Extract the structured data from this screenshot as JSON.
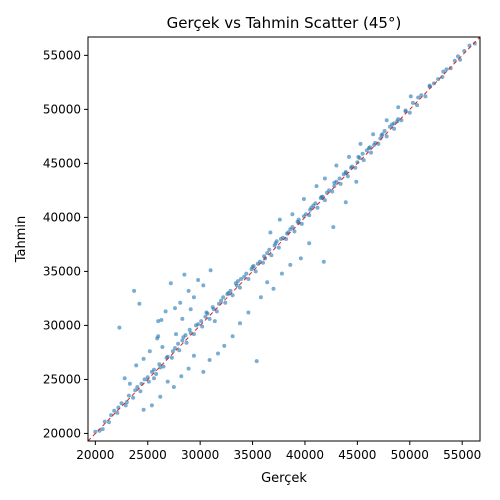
{
  "chart_data": {
    "type": "scatter",
    "title": "Gerçek vs Tahmin Scatter (45°)",
    "xlabel": "Gerçek",
    "ylabel": "Tahmin",
    "xlim": [
      19300,
      56700
    ],
    "ylim": [
      19300,
      56700
    ],
    "xticks": [
      20000,
      25000,
      30000,
      35000,
      40000,
      45000,
      50000,
      55000
    ],
    "yticks": [
      20000,
      25000,
      30000,
      35000,
      40000,
      45000,
      50000,
      55000
    ],
    "grid": false,
    "reference_line": {
      "from": [
        19300,
        19300
      ],
      "to": [
        56700,
        56700
      ],
      "color": "#d62728",
      "style": "dashed"
    },
    "point_color": "#1f77b4",
    "points": [
      [
        20000,
        20150
      ],
      [
        20400,
        20250
      ],
      [
        20900,
        21100
      ],
      [
        21300,
        21050
      ],
      [
        21800,
        22100
      ],
      [
        22100,
        21900
      ],
      [
        22500,
        22800
      ],
      [
        22900,
        22600
      ],
      [
        23200,
        23500
      ],
      [
        23600,
        23300
      ],
      [
        24000,
        24300
      ],
      [
        24300,
        23900
      ],
      [
        24700,
        25000
      ],
      [
        25100,
        24800
      ],
      [
        25400,
        25700
      ],
      [
        25800,
        25500
      ],
      [
        26100,
        26400
      ],
      [
        26500,
        26200
      ],
      [
        26900,
        27100
      ],
      [
        27300,
        27000
      ],
      [
        27600,
        27900
      ],
      [
        28000,
        27700
      ],
      [
        28300,
        28600
      ],
      [
        28700,
        28400
      ],
      [
        29100,
        29300
      ],
      [
        29400,
        29200
      ],
      [
        29800,
        30100
      ],
      [
        30200,
        29900
      ],
      [
        30500,
        30800
      ],
      [
        30900,
        30600
      ],
      [
        31300,
        31500
      ],
      [
        31600,
        31300
      ],
      [
        32000,
        32300
      ],
      [
        32400,
        32100
      ],
      [
        32700,
        33000
      ],
      [
        33100,
        32800
      ],
      [
        33500,
        33700
      ],
      [
        33800,
        33500
      ],
      [
        34200,
        34500
      ],
      [
        34600,
        34300
      ],
      [
        34900,
        35200
      ],
      [
        35300,
        35000
      ],
      [
        35700,
        35900
      ],
      [
        36000,
        35800
      ],
      [
        36400,
        36700
      ],
      [
        36800,
        36500
      ],
      [
        37100,
        37400
      ],
      [
        37500,
        37200
      ],
      [
        37900,
        38100
      ],
      [
        38200,
        38000
      ],
      [
        38600,
        38900
      ],
      [
        39000,
        38700
      ],
      [
        39300,
        39600
      ],
      [
        39700,
        39400
      ],
      [
        40100,
        40300
      ],
      [
        40400,
        40200
      ],
      [
        40800,
        41100
      ],
      [
        41200,
        40900
      ],
      [
        41500,
        41800
      ],
      [
        41900,
        41600
      ],
      [
        42300,
        42500
      ],
      [
        42600,
        42400
      ],
      [
        43000,
        43300
      ],
      [
        43400,
        43100
      ],
      [
        43700,
        44000
      ],
      [
        44100,
        43800
      ],
      [
        44500,
        44700
      ],
      [
        44800,
        44600
      ],
      [
        45200,
        45500
      ],
      [
        45600,
        45300
      ],
      [
        45900,
        46200
      ],
      [
        46300,
        46000
      ],
      [
        46700,
        46900
      ],
      [
        47000,
        46800
      ],
      [
        47400,
        47700
      ],
      [
        47800,
        47500
      ],
      [
        48100,
        48400
      ],
      [
        48500,
        48200
      ],
      [
        48900,
        49100
      ],
      [
        49200,
        49000
      ],
      [
        49600,
        49900
      ],
      [
        50000,
        49700
      ],
      [
        50300,
        50600
      ],
      [
        50700,
        50400
      ],
      [
        51100,
        51300
      ],
      [
        51500,
        51200
      ],
      [
        51900,
        52100
      ],
      [
        52300,
        52400
      ],
      [
        52700,
        52800
      ],
      [
        53100,
        53000
      ],
      [
        53500,
        53700
      ],
      [
        53900,
        53800
      ],
      [
        54300,
        54500
      ],
      [
        54800,
        54600
      ],
      [
        55200,
        55400
      ],
      [
        55700,
        55900
      ],
      [
        56200,
        56100
      ],
      [
        22800,
        25100
      ],
      [
        23300,
        24600
      ],
      [
        23900,
        26300
      ],
      [
        24600,
        26900
      ],
      [
        25200,
        27600
      ],
      [
        25900,
        28800
      ],
      [
        26300,
        30500
      ],
      [
        26700,
        31300
      ],
      [
        27200,
        33900
      ],
      [
        27600,
        31600
      ],
      [
        28100,
        32100
      ],
      [
        28500,
        34700
      ],
      [
        28900,
        33200
      ],
      [
        29400,
        32600
      ],
      [
        29800,
        34200
      ],
      [
        30300,
        33700
      ],
      [
        31000,
        35100
      ],
      [
        22300,
        29800
      ],
      [
        23700,
        33200
      ],
      [
        24200,
        32000
      ],
      [
        26000,
        29000
      ],
      [
        26400,
        28000
      ],
      [
        27700,
        29200
      ],
      [
        28300,
        30600
      ],
      [
        29100,
        31500
      ],
      [
        24600,
        22200
      ],
      [
        25400,
        22600
      ],
      [
        26200,
        23400
      ],
      [
        26900,
        24800
      ],
      [
        27500,
        24300
      ],
      [
        28200,
        25300
      ],
      [
        28900,
        26000
      ],
      [
        29400,
        27200
      ],
      [
        30300,
        25700
      ],
      [
        30900,
        26800
      ],
      [
        31700,
        27400
      ],
      [
        32300,
        28100
      ],
      [
        33100,
        29000
      ],
      [
        33800,
        30200
      ],
      [
        34600,
        31200
      ],
      [
        35400,
        26700
      ],
      [
        35800,
        32600
      ],
      [
        36400,
        34000
      ],
      [
        37000,
        33400
      ],
      [
        37800,
        34800
      ],
      [
        38600,
        35600
      ],
      [
        39600,
        36200
      ],
      [
        40400,
        37600
      ],
      [
        41800,
        35900
      ],
      [
        42700,
        39100
      ],
      [
        43900,
        41400
      ],
      [
        44900,
        43300
      ],
      [
        36700,
        38600
      ],
      [
        37600,
        39800
      ],
      [
        38800,
        40300
      ],
      [
        39900,
        41700
      ],
      [
        41100,
        42900
      ],
      [
        41900,
        43600
      ],
      [
        43000,
        44800
      ],
      [
        44200,
        45600
      ],
      [
        45300,
        46800
      ],
      [
        46500,
        47700
      ],
      [
        47800,
        49000
      ],
      [
        48900,
        50200
      ],
      [
        50100,
        51200
      ],
      [
        26000,
        30400
      ],
      [
        25600,
        25100
      ],
      [
        28600,
        29100
      ],
      [
        30600,
        31200
      ],
      [
        31400,
        30400
      ],
      [
        32600,
        32900
      ],
      [
        33600,
        34100
      ],
      [
        35100,
        35500
      ],
      [
        36100,
        36400
      ],
      [
        37300,
        37800
      ],
      [
        38400,
        38600
      ],
      [
        39400,
        39800
      ],
      [
        40600,
        40900
      ],
      [
        41600,
        41900
      ],
      [
        42800,
        43200
      ],
      [
        43900,
        44100
      ],
      [
        45100,
        45600
      ],
      [
        46200,
        46500
      ],
      [
        47300,
        47600
      ],
      [
        48500,
        48700
      ],
      [
        49600,
        49800
      ],
      [
        50800,
        51100
      ],
      [
        51900,
        52200
      ],
      [
        53200,
        53500
      ],
      [
        54600,
        54900
      ],
      [
        20700,
        20400
      ],
      [
        21500,
        21700
      ],
      [
        22200,
        22400
      ],
      [
        23000,
        22900
      ],
      [
        23800,
        24000
      ],
      [
        24400,
        24600
      ],
      [
        25000,
        25200
      ],
      [
        25600,
        25900
      ],
      [
        26200,
        26100
      ],
      [
        26800,
        27000
      ],
      [
        27400,
        27600
      ],
      [
        27900,
        28300
      ],
      [
        28400,
        28900
      ],
      [
        29000,
        29600
      ],
      [
        29600,
        30000
      ],
      [
        30100,
        30400
      ],
      [
        30700,
        31100
      ],
      [
        31200,
        31700
      ],
      [
        31800,
        32000
      ],
      [
        32200,
        32600
      ],
      [
        32900,
        33200
      ],
      [
        33400,
        33900
      ],
      [
        33900,
        34300
      ],
      [
        34400,
        34800
      ],
      [
        35000,
        35400
      ],
      [
        35500,
        35700
      ],
      [
        36200,
        36200
      ],
      [
        36600,
        37000
      ],
      [
        37200,
        37600
      ],
      [
        37700,
        38000
      ],
      [
        38300,
        38500
      ],
      [
        38800,
        39100
      ],
      [
        39400,
        39500
      ],
      [
        39900,
        40100
      ],
      [
        40500,
        40700
      ],
      [
        41000,
        41300
      ],
      [
        41700,
        41900
      ],
      [
        42100,
        42300
      ],
      [
        42800,
        42900
      ],
      [
        43300,
        43600
      ],
      [
        43900,
        44200
      ],
      [
        44400,
        44600
      ],
      [
        45000,
        45100
      ],
      [
        45500,
        45900
      ],
      [
        46100,
        46400
      ],
      [
        46600,
        46700
      ],
      [
        47200,
        47300
      ],
      [
        47600,
        48000
      ],
      [
        48300,
        48600
      ],
      [
        48800,
        48900
      ]
    ]
  }
}
